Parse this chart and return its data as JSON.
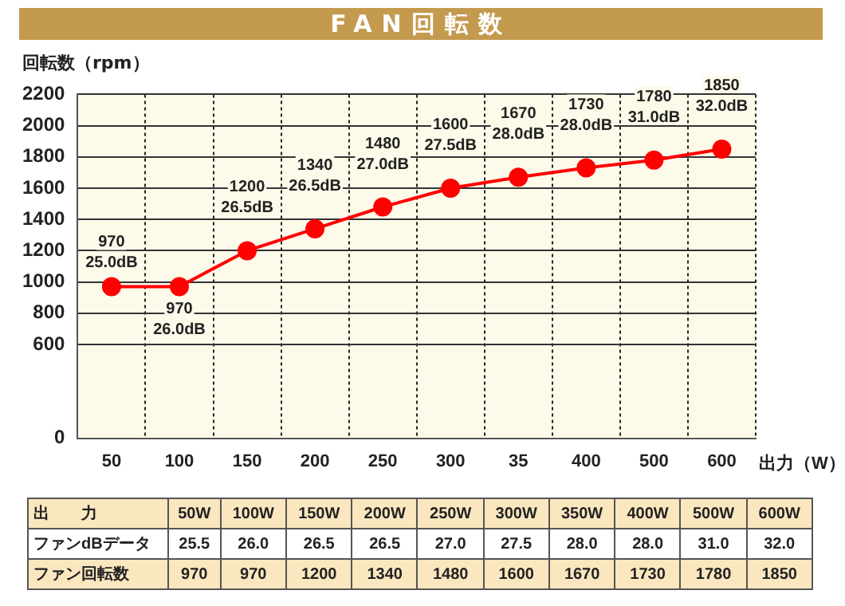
{
  "chart_data": {
    "type": "line",
    "title": "FAN回転数",
    "ylabel": "回転数（rpm）",
    "xlabel": "出力（W）",
    "categories": [
      "50",
      "100",
      "150",
      "200",
      "250",
      "300",
      "35",
      "400",
      "500",
      "600"
    ],
    "series": [
      {
        "color": "#ff0000",
        "values": [
          970,
          970,
          1200,
          1340,
          1480,
          1600,
          1670,
          1730,
          1780,
          1850
        ],
        "value_labels": [
          "970\n25.0dB",
          "970\n26.0dB",
          "1200\n26.5dB",
          "1340\n26.5dB",
          "1480\n27.0dB",
          "1600\n27.5dB",
          "1670\n28.0dB",
          "1730\n28.0dB",
          "1780\n31.0dB",
          "1850\n32.0dB"
        ]
      }
    ],
    "ylim": [
      0,
      2200
    ],
    "yticks": [
      0,
      600,
      800,
      1000,
      1200,
      1400,
      1600,
      1800,
      2000,
      2200
    ],
    "grid": true,
    "legend": false,
    "marker": "circle",
    "line_style": "solid",
    "annotations": [
      "出　　力",
      "50W",
      "100W",
      "150W",
      "200W",
      "250W",
      "300W",
      "350W",
      "400W",
      "500W",
      "600W",
      "ファンdBデータ",
      "25.5",
      "26.0",
      "26.5",
      "26.5",
      "27.0",
      "27.5",
      "28.0",
      "28.0",
      "31.0",
      "32.0",
      "ファン回転数",
      "970",
      "970",
      "1200",
      "1340",
      "1480",
      "1600",
      "1670",
      "1730",
      "1780",
      "1850"
    ]
  }
}
